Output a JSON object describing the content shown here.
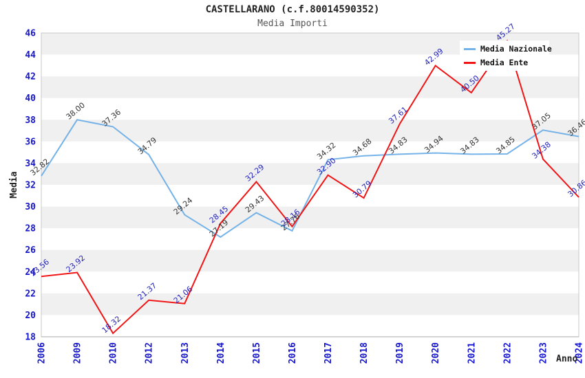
{
  "title": "CASTELLARANO (c.f.80014590352)",
  "subtitle": "Media Importi",
  "legend": {
    "items": [
      {
        "label": "Media Nazionale",
        "color": "#74b2e8"
      },
      {
        "label": "Media Ente",
        "color": "#f01414"
      }
    ]
  },
  "colors": {
    "band_gray": "#f0f0f0",
    "band_white": "#ffffff",
    "plot_border": "#c8c8c8",
    "axis_tick_label": "#1515cd",
    "title_text": "#222222",
    "subtitle_text": "#555555",
    "nazionale_line": "#74b2e8",
    "ente_line": "#f01414",
    "nazionale_data_label": "#333333",
    "ente_data_label": "#2323bb"
  },
  "chart_data": {
    "type": "line",
    "title": "CASTELLARANO (c.f.80014590352)",
    "subtitle": "Media Importi",
    "xlabel": "Anno",
    "ylabel": "Media",
    "ylim": [
      18,
      46
    ],
    "ytick_step": 2,
    "grid": "horizontal-bands",
    "legend_position": "top-right",
    "categories": [
      "2006",
      "2009",
      "2010",
      "2012",
      "2013",
      "2014",
      "2015",
      "2016",
      "2017",
      "2018",
      "2019",
      "2020",
      "2021",
      "2022",
      "2023",
      "2024"
    ],
    "series": [
      {
        "name": "Media Nazionale",
        "color": "#74b2e8",
        "label_color": "#333333",
        "values": [
          32.82,
          38.0,
          37.36,
          34.79,
          29.24,
          27.19,
          29.43,
          27.76,
          34.32,
          34.68,
          34.83,
          34.94,
          34.83,
          34.85,
          37.05,
          36.46
        ]
      },
      {
        "name": "Media Ente",
        "color": "#f01414",
        "label_color": "#2323bb",
        "values": [
          23.56,
          23.92,
          18.32,
          21.37,
          21.06,
          28.45,
          32.29,
          28.16,
          32.9,
          30.79,
          37.61,
          42.99,
          40.5,
          45.27,
          34.38,
          30.86
        ]
      }
    ]
  }
}
